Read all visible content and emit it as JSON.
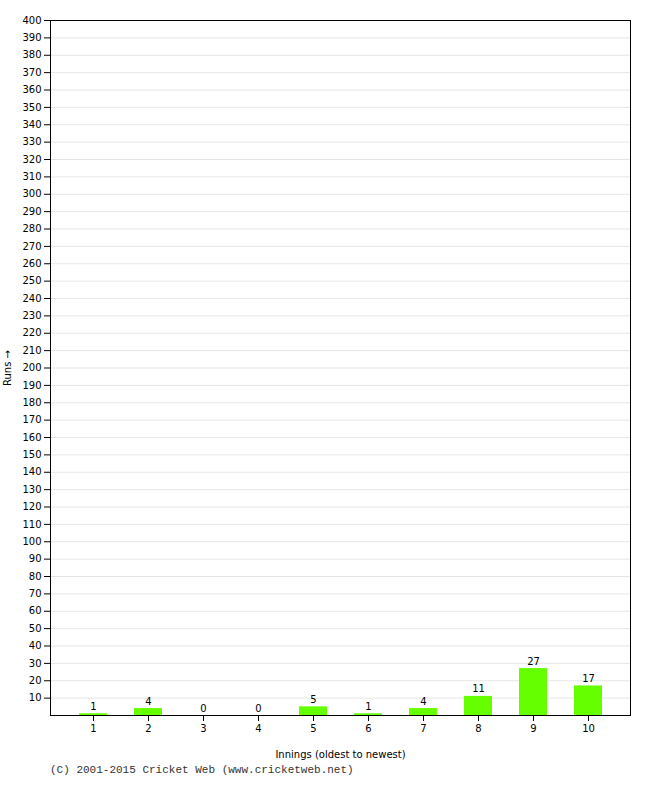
{
  "chart_data": {
    "type": "bar",
    "xlabel": "Innings (oldest to newest)",
    "ylabel": "Runs",
    "categories": [
      "1",
      "2",
      "3",
      "4",
      "5",
      "6",
      "7",
      "8",
      "9",
      "10"
    ],
    "values": [
      1,
      4,
      0,
      0,
      5,
      1,
      4,
      11,
      27,
      17
    ],
    "color": "#66ff00",
    "ylim": [
      0,
      400
    ],
    "yticks": [
      10,
      20,
      30,
      40,
      50,
      60,
      70,
      80,
      90,
      100,
      110,
      120,
      130,
      140,
      150,
      160,
      170,
      180,
      190,
      200,
      210,
      220,
      230,
      240,
      250,
      260,
      270,
      280,
      290,
      300,
      310,
      320,
      330,
      340,
      350,
      360,
      370,
      380,
      390,
      400
    ],
    "grid": true,
    "data_labels": true,
    "footer": "(C) 2001-2015 Cricket Web (www.cricketweb.net)"
  }
}
